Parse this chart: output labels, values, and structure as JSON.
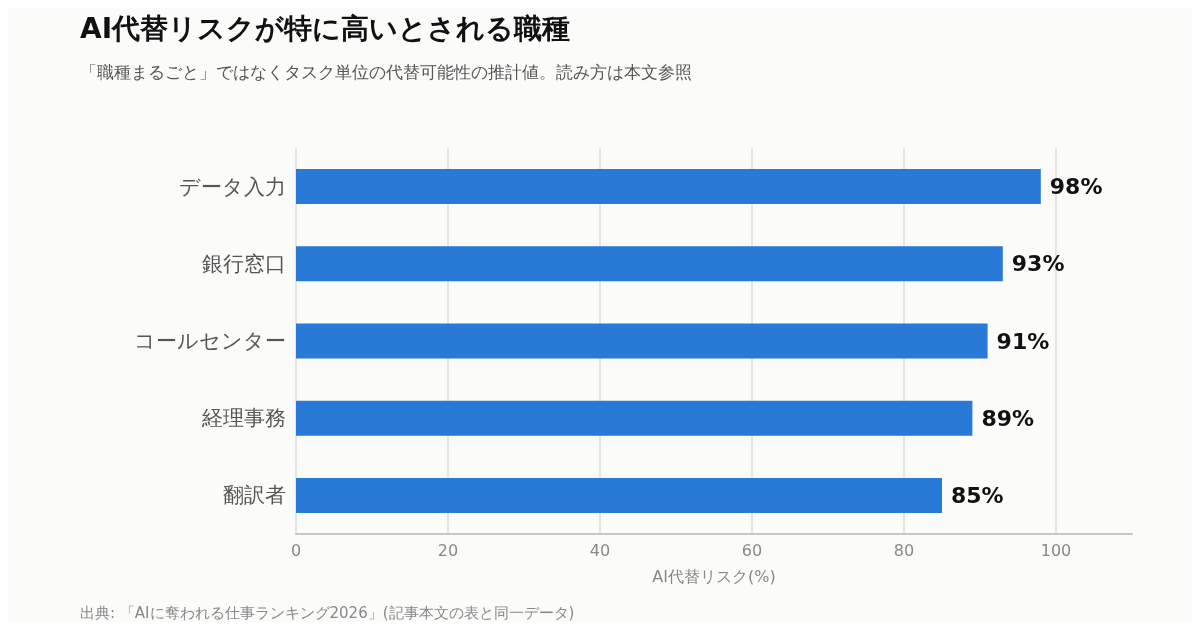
{
  "chart_data": {
    "type": "bar",
    "orientation": "horizontal",
    "title": "AI代替リスクが特に高いとされる職種",
    "subtitle": "「職種まるごと」ではなくタスク単位の代替可能性の推計値。読み方は本文参照",
    "xlabel": "AI代替リスク(%)",
    "categories": [
      "データ入力",
      "銀行窓口",
      "コールセンター",
      "経理事務",
      "翻訳者"
    ],
    "values": [
      98,
      93,
      91,
      89,
      85
    ],
    "value_labels": [
      "98%",
      "93%",
      "91%",
      "89%",
      "85%"
    ],
    "color": "#2979d6",
    "xlim": [
      0,
      110
    ],
    "xticks": [
      0,
      20,
      40,
      60,
      80,
      100
    ],
    "grid": "x",
    "annotations": [
      "出典: 「AIに奪われる仕事ランキング2026」(記事本文の表と同一データ)"
    ]
  }
}
